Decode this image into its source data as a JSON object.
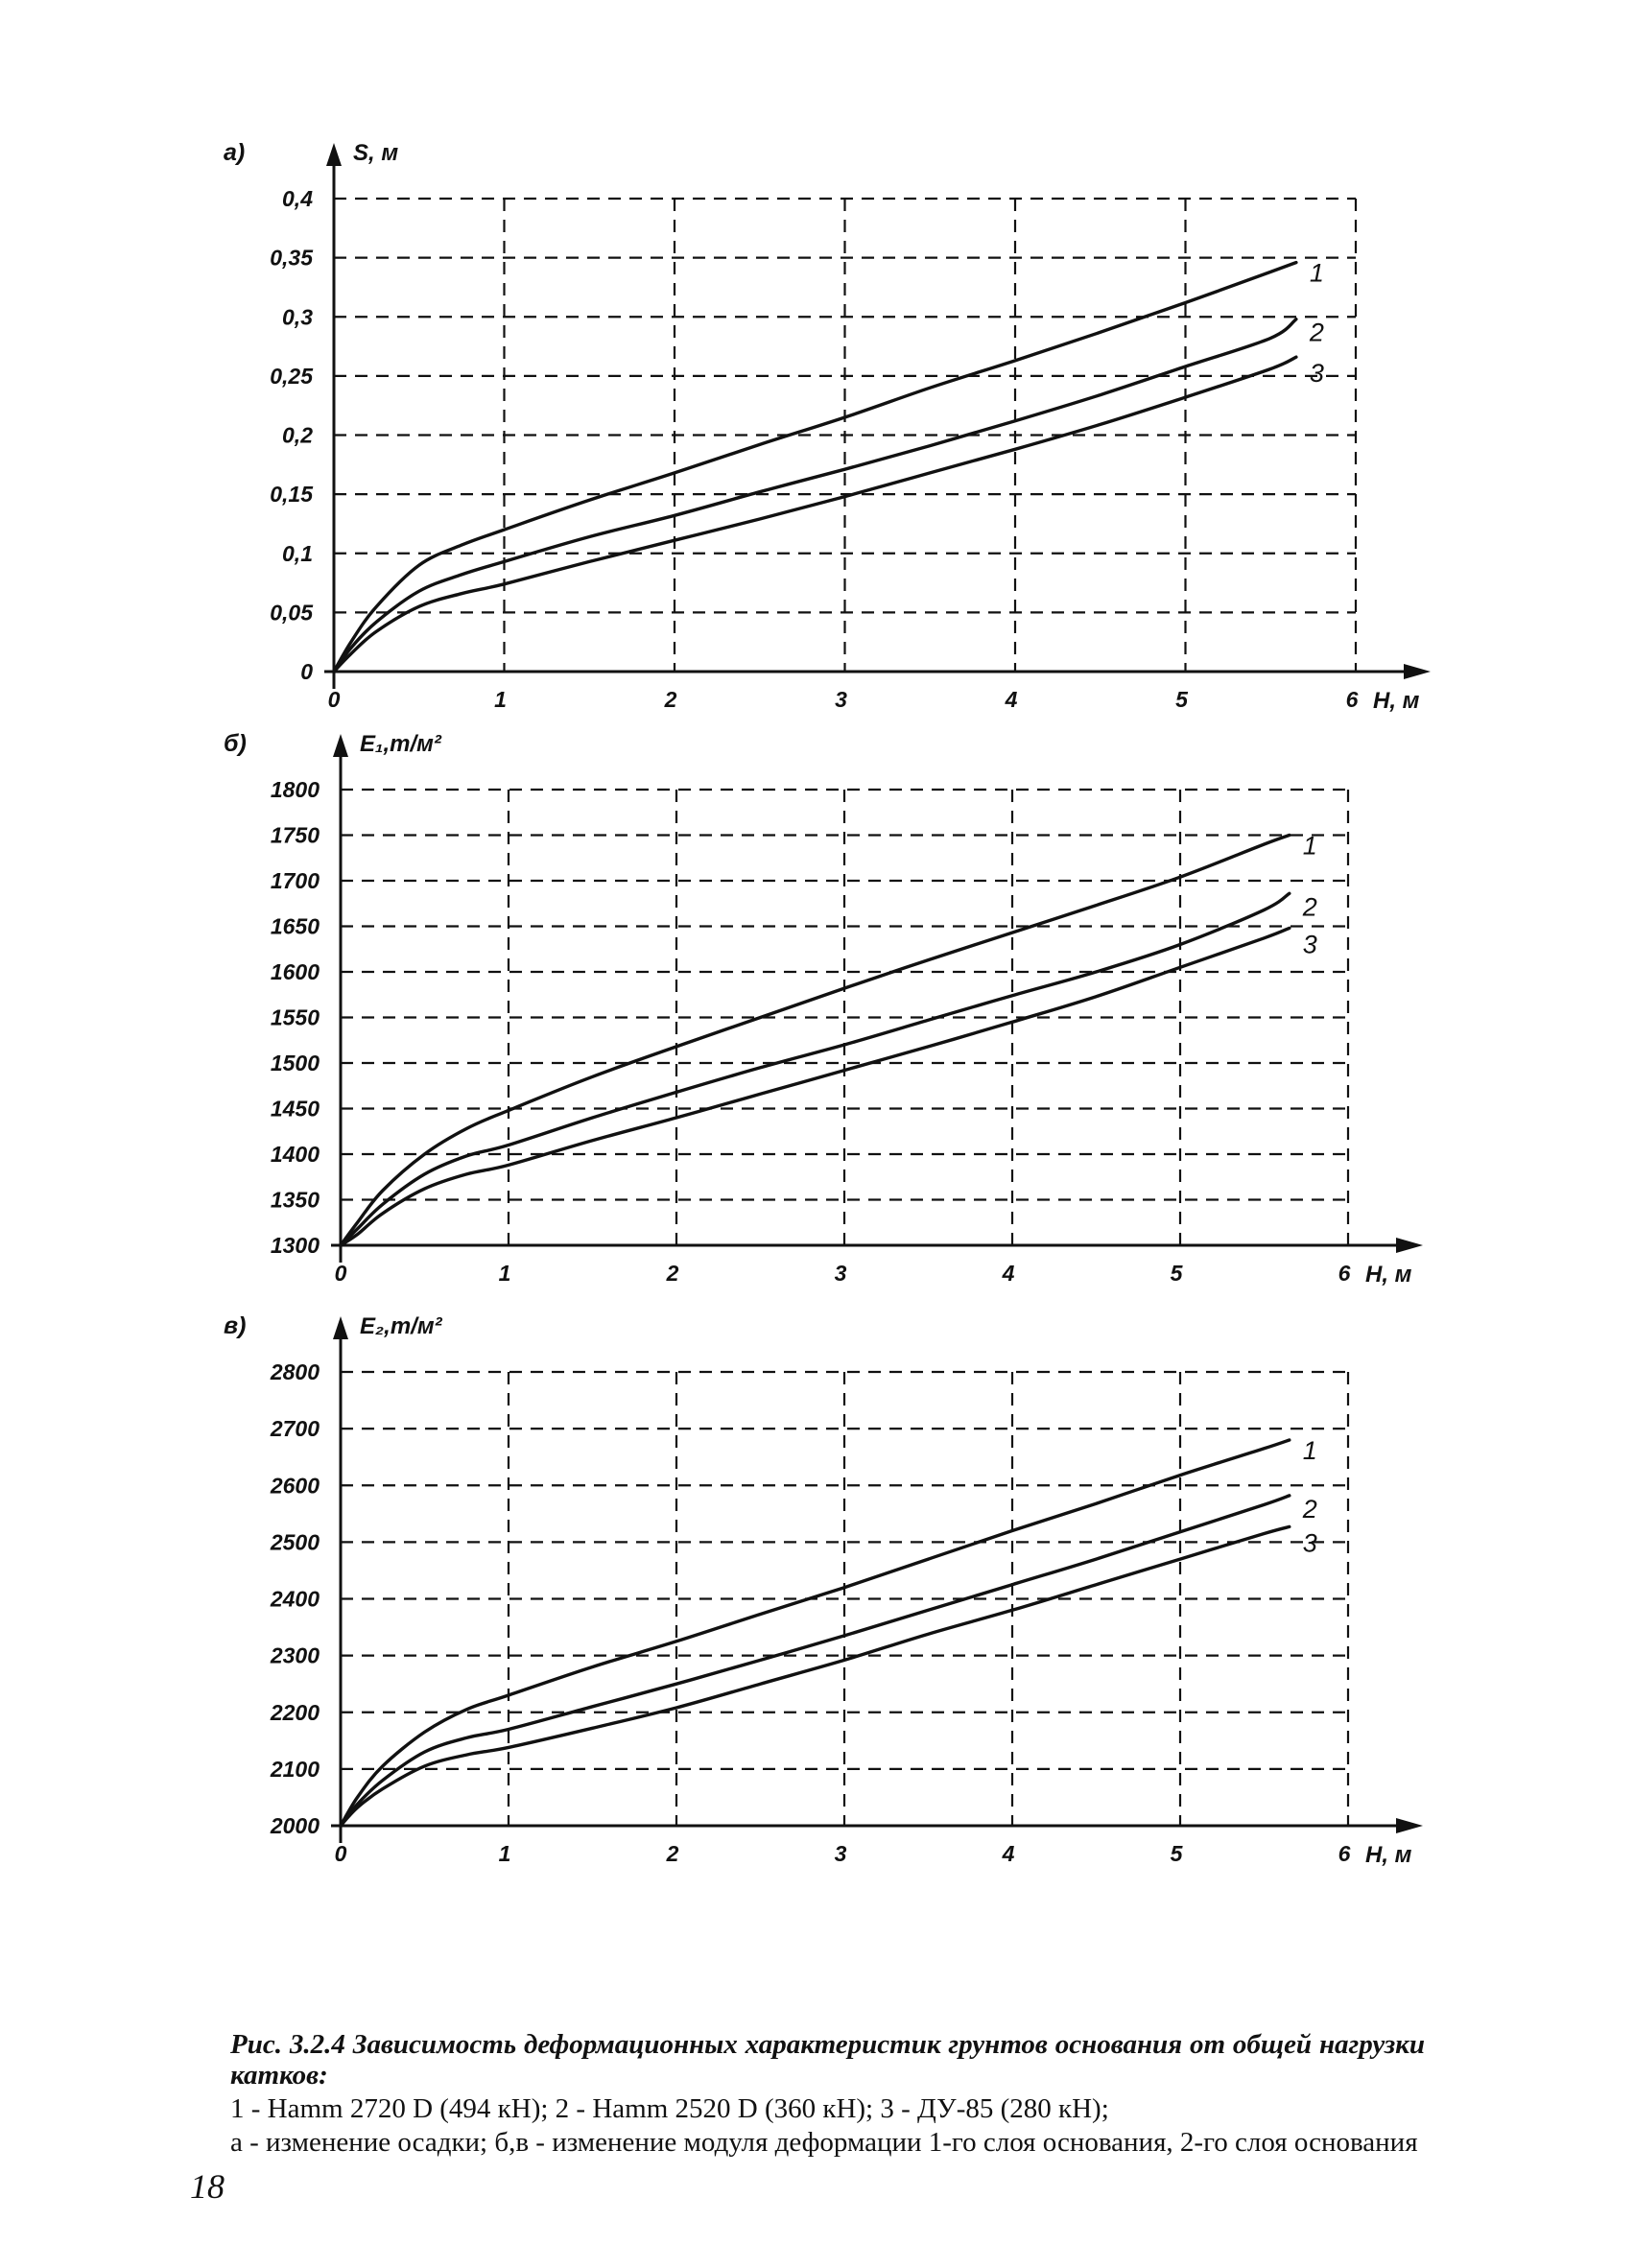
{
  "caption": {
    "title": "Рис. 3.2.4 Зависимость деформационных характеристик грунтов основания от общей нагрузки катков:",
    "line1": "1 - Hamm 2720 D (494 кН); 2 - Hamm 2520 D (360 кН); 3 - ДУ-85 (280 кН);",
    "line2": "а - изменение осадки; б,в - изменение модуля деформации 1-го слоя основания, 2-го слоя основания"
  },
  "page_number": "18",
  "chart_data": [
    {
      "type": "line",
      "panel": "а)",
      "xlabel": "H, м",
      "ylabel": "S, м",
      "xlim": [
        0,
        6
      ],
      "ylim": [
        0,
        0.4
      ],
      "grid": true,
      "x_ticks": [
        "0",
        "1",
        "2",
        "3",
        "4",
        "5",
        "6"
      ],
      "y_ticks": [
        "0",
        "0,05",
        "0,1",
        "0,15",
        "0,2",
        "0,25",
        "0,3",
        "0,35",
        "0,4"
      ],
      "x": [
        0,
        0.1,
        0.25,
        0.5,
        0.75,
        1.0,
        1.5,
        2.0,
        2.5,
        3.0,
        3.5,
        4.0,
        4.5,
        5.0,
        5.5,
        5.65
      ],
      "series": [
        {
          "name": "1",
          "values": [
            0,
            0.025,
            0.055,
            0.09,
            0.107,
            0.12,
            0.145,
            0.168,
            0.192,
            0.215,
            0.24,
            0.263,
            0.287,
            0.312,
            0.338,
            0.346
          ]
        },
        {
          "name": "2",
          "values": [
            0,
            0.02,
            0.042,
            0.068,
            0.082,
            0.093,
            0.114,
            0.132,
            0.152,
            0.171,
            0.191,
            0.212,
            0.234,
            0.258,
            0.282,
            0.298
          ]
        },
        {
          "name": "3",
          "values": [
            0,
            0.015,
            0.034,
            0.055,
            0.066,
            0.074,
            0.093,
            0.111,
            0.129,
            0.148,
            0.168,
            0.188,
            0.209,
            0.232,
            0.256,
            0.266
          ]
        }
      ]
    },
    {
      "type": "line",
      "panel": "б)",
      "xlabel": "H, м",
      "ylabel": "E₁,т/м²",
      "xlim": [
        0,
        6
      ],
      "ylim": [
        1300,
        1800
      ],
      "grid": true,
      "x_ticks": [
        "0",
        "1",
        "2",
        "3",
        "4",
        "5",
        "6"
      ],
      "y_ticks": [
        "1300",
        "1350",
        "1400",
        "1450",
        "1500",
        "1550",
        "1600",
        "1650",
        "1700",
        "1750",
        "1800"
      ],
      "x": [
        0,
        0.1,
        0.25,
        0.5,
        0.75,
        1.0,
        1.5,
        2.0,
        2.5,
        3.0,
        3.5,
        4.0,
        4.5,
        5.0,
        5.5,
        5.65
      ],
      "series": [
        {
          "name": "1",
          "values": [
            1300,
            1325,
            1360,
            1400,
            1428,
            1448,
            1485,
            1518,
            1550,
            1582,
            1613,
            1643,
            1673,
            1704,
            1740,
            1750
          ]
        },
        {
          "name": "2",
          "values": [
            1300,
            1318,
            1345,
            1378,
            1398,
            1410,
            1440,
            1468,
            1495,
            1520,
            1547,
            1574,
            1600,
            1630,
            1668,
            1686
          ]
        },
        {
          "name": "3",
          "values": [
            1300,
            1312,
            1335,
            1362,
            1378,
            1388,
            1415,
            1440,
            1466,
            1492,
            1518,
            1545,
            1573,
            1605,
            1637,
            1648
          ]
        }
      ]
    },
    {
      "type": "line",
      "panel": "в)",
      "xlabel": "H, м",
      "ylabel": "E₂,т/м²",
      "xlim": [
        0,
        6
      ],
      "ylim": [
        2000,
        2800
      ],
      "grid": true,
      "x_ticks": [
        "0",
        "1",
        "2",
        "3",
        "4",
        "5",
        "6"
      ],
      "y_ticks": [
        "2000",
        "2100",
        "2200",
        "2300",
        "2400",
        "2500",
        "2600",
        "2700",
        "2800"
      ],
      "x": [
        0,
        0.1,
        0.25,
        0.5,
        0.75,
        1.0,
        1.5,
        2.0,
        2.5,
        3.0,
        3.5,
        4.0,
        4.5,
        5.0,
        5.5,
        5.65
      ],
      "series": [
        {
          "name": "1",
          "values": [
            2000,
            2050,
            2105,
            2165,
            2205,
            2230,
            2280,
            2325,
            2373,
            2420,
            2470,
            2520,
            2568,
            2618,
            2665,
            2680
          ]
        },
        {
          "name": "2",
          "values": [
            2000,
            2038,
            2080,
            2130,
            2155,
            2170,
            2210,
            2250,
            2292,
            2335,
            2380,
            2425,
            2470,
            2518,
            2566,
            2582
          ]
        },
        {
          "name": "3",
          "values": [
            2000,
            2032,
            2065,
            2105,
            2125,
            2138,
            2172,
            2208,
            2250,
            2292,
            2338,
            2380,
            2425,
            2470,
            2515,
            2527
          ]
        }
      ]
    }
  ]
}
